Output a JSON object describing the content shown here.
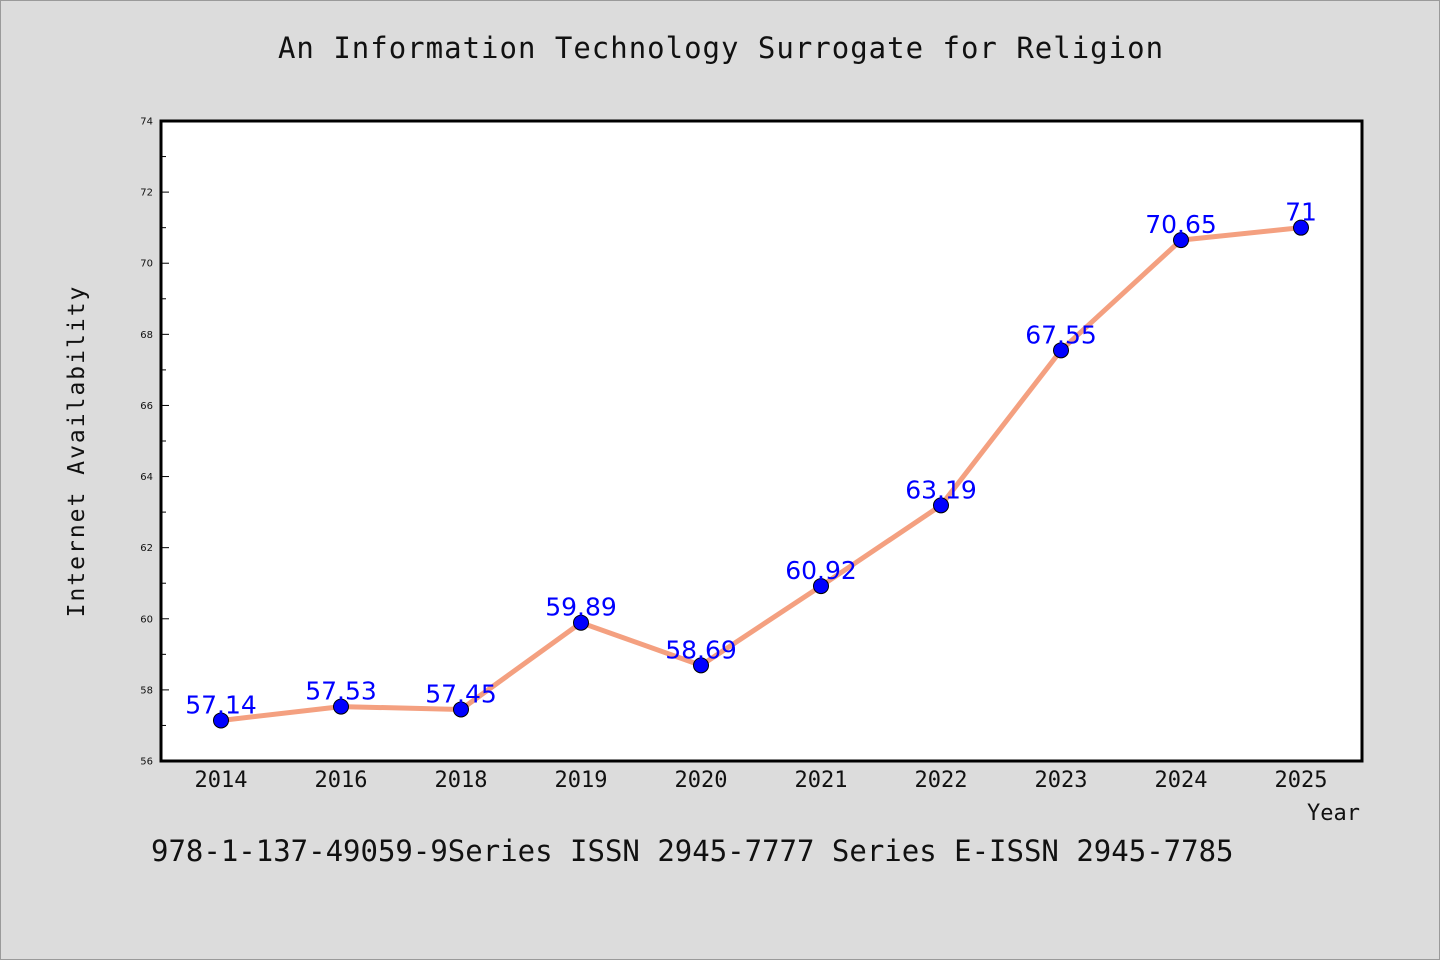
{
  "chart_data": {
    "type": "line",
    "title": "An Information Technology Surrogate for Religion",
    "xlabel": "Year",
    "ylabel": "Internet Availability",
    "categories": [
      "2014",
      "2016",
      "2018",
      "2019",
      "2020",
      "2021",
      "2022",
      "2023",
      "2024",
      "2025"
    ],
    "values": [
      57.14,
      57.53,
      57.45,
      59.89,
      58.69,
      60.92,
      63.19,
      67.55,
      70.65,
      71
    ],
    "data_labels": [
      "57.14",
      "57.53",
      "57.45",
      "59.89",
      "58.69",
      "60.92",
      "63.19",
      "67.55",
      "70.65",
      "71"
    ],
    "ylim": [
      56,
      74
    ],
    "yticks": [
      "56",
      "58",
      "60",
      "62",
      "64",
      "66",
      "68",
      "70",
      "72",
      "74"
    ],
    "grid": false,
    "colors": {
      "line": "#f4a080",
      "marker": "#0000ff",
      "data_label": "#0000ff",
      "background": "#dcdcdc",
      "plot_background": "#ffffff"
    }
  },
  "footer": {
    "text": "978-1-137-49059-9Series ISSN 2945-7777 Series E-ISSN 2945-7785"
  }
}
